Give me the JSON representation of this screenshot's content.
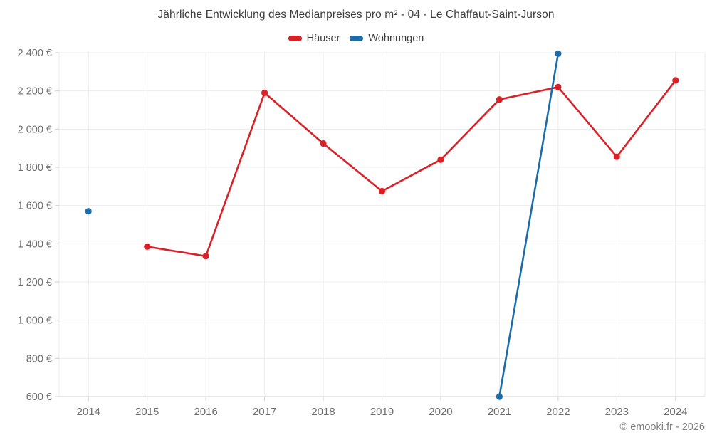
{
  "title": "Jährliche Entwicklung des Medianpreises pro m² - 04 - Le Chaffaut-Saint-Jurson",
  "legend": {
    "items": [
      {
        "label": "Häuser",
        "color": "#da2128"
      },
      {
        "label": "Wohnungen",
        "color": "#1b6ca8"
      }
    ]
  },
  "copyright": "© emooki.fr - 2026",
  "chart_data": {
    "type": "line",
    "title": "Jährliche Entwicklung des Medianpreises pro m² - 04 - Le Chaffaut-Saint-Jurson",
    "categories": [
      "2014",
      "2015",
      "2016",
      "2017",
      "2018",
      "2019",
      "2020",
      "2021",
      "2022",
      "2023",
      "2024"
    ],
    "series": [
      {
        "name": "Häuser",
        "color": "#da2128",
        "values": [
          null,
          1385,
          1335,
          2190,
          1925,
          1675,
          1840,
          2155,
          2220,
          1855,
          2255
        ]
      },
      {
        "name": "Wohnungen",
        "color": "#1b6ca8",
        "values": [
          1570,
          null,
          null,
          null,
          null,
          null,
          null,
          600,
          2395,
          null,
          null
        ]
      }
    ],
    "xlabel": "",
    "ylabel": "",
    "ylim": [
      600,
      2400
    ],
    "ytick_step": 200,
    "ytick_suffix": " €",
    "grid": true,
    "legend_position": "top",
    "colors": {
      "grid": "#ececec",
      "axis_line": "#d7d7d7",
      "tick": "#cfcfcf",
      "axis_text": "#6e6e6e",
      "title_text": "#3d3d3d"
    }
  }
}
